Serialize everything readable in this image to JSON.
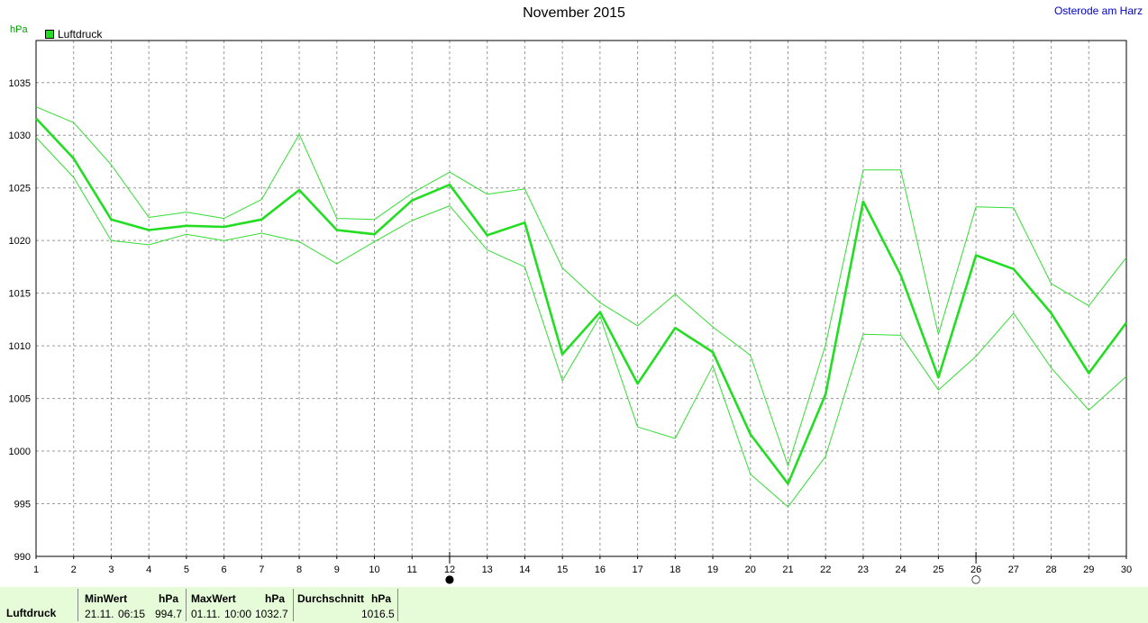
{
  "title": "November 2015",
  "location": "Osterode am Harz",
  "unit": "hPa",
  "legend_label": "Luftdruck",
  "colors": {
    "main": "#22dd22",
    "band": "#33dd33",
    "grid": "#999999",
    "footer_bg": "#e6fbd8"
  },
  "chart_data": {
    "type": "line",
    "title": "November 2015",
    "ylabel": "hPa",
    "ylim": [
      990,
      1039
    ],
    "yticks": [
      990,
      995,
      1000,
      1005,
      1010,
      1015,
      1020,
      1025,
      1030,
      1035
    ],
    "x": [
      1,
      2,
      3,
      4,
      5,
      6,
      7,
      8,
      9,
      10,
      11,
      12,
      13,
      14,
      15,
      16,
      17,
      18,
      19,
      20,
      21,
      22,
      23,
      24,
      25,
      26,
      27,
      28,
      29,
      30
    ],
    "grid": true,
    "series": [
      {
        "name": "Luftdruck",
        "role": "mean",
        "values": [
          1031.6,
          1027.8,
          1022.0,
          1021.0,
          1021.4,
          1021.3,
          1022.0,
          1024.8,
          1021.0,
          1020.6,
          1023.8,
          1025.3,
          1020.5,
          1021.7,
          1009.2,
          1013.2,
          1006.4,
          1011.7,
          1009.4,
          1001.6,
          996.9,
          1005.4,
          1023.7,
          1016.7,
          1007.0,
          1018.6,
          1017.3,
          1013.1,
          1007.4,
          1012.2
        ]
      },
      {
        "role": "max",
        "values": [
          1032.7,
          1031.2,
          1027.2,
          1022.2,
          1022.7,
          1022.1,
          1023.9,
          1030.1,
          1022.1,
          1022.0,
          1024.5,
          1026.5,
          1024.4,
          1024.9,
          1017.4,
          1014.1,
          1011.9,
          1014.9,
          1011.8,
          1009.1,
          998.6,
          1010.1,
          1026.7,
          1026.7,
          1011.1,
          1023.2,
          1023.1,
          1015.9,
          1013.8,
          1018.4
        ]
      },
      {
        "role": "min",
        "values": [
          1029.8,
          1026.0,
          1020.0,
          1019.6,
          1020.6,
          1020.0,
          1020.7,
          1019.9,
          1017.8,
          1019.9,
          1021.9,
          1023.3,
          1019.1,
          1017.5,
          1006.7,
          1012.8,
          1002.3,
          1001.2,
          1008.1,
          997.8,
          994.7,
          999.5,
          1011.1,
          1011.0,
          1005.8,
          1009.0,
          1013.1,
          1007.9,
          1003.9,
          1007.1
        ]
      }
    ],
    "markers": [
      {
        "day": 12,
        "symbol": "●"
      },
      {
        "day": 26,
        "symbol": "○"
      }
    ]
  },
  "footer": {
    "row_label": "Luftdruck",
    "min": {
      "label": "MinWert",
      "unit": "hPa",
      "date": "21.11.",
      "time": "06:15",
      "value": "994.7"
    },
    "max": {
      "label": "MaxWert",
      "unit": "hPa",
      "date": "01.11.",
      "time": "10:00",
      "value": "1032.7"
    },
    "avg": {
      "label": "Durchschnitt",
      "unit": "hPa",
      "value": "1016.5"
    }
  }
}
